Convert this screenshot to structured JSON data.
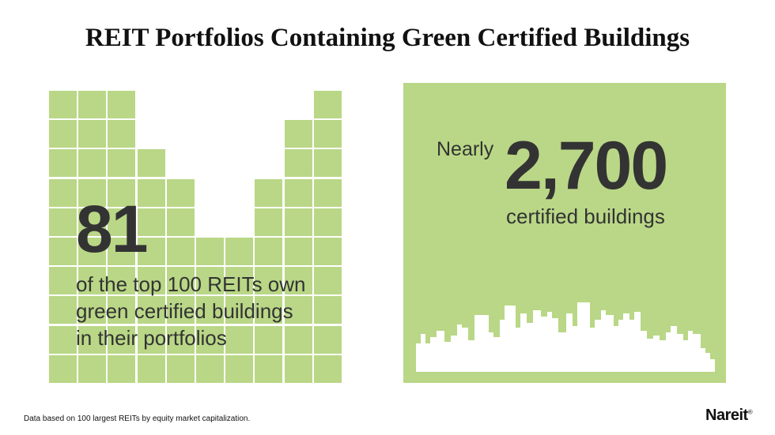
{
  "title": "REIT Portfolios Containing Green Certified Buildings",
  "left_panel": {
    "big_number": "81",
    "lines": [
      "of the top 100 REITs own",
      "green certified buildings",
      "in their portfolios"
    ],
    "colors": {
      "cell": "#b9d786",
      "text": "#333333"
    }
  },
  "right_panel": {
    "prefix": "Nearly",
    "big_number": "2,700",
    "caption": "certified buildings",
    "colors": {
      "background": "#b9d786",
      "skyline": "#ffffff"
    },
    "icon": "city-skyline-icon"
  },
  "footnote": "Data based on 100 largest REITs by equity market capitalization.",
  "logo": {
    "text": "Nareit",
    "mark": "®"
  }
}
